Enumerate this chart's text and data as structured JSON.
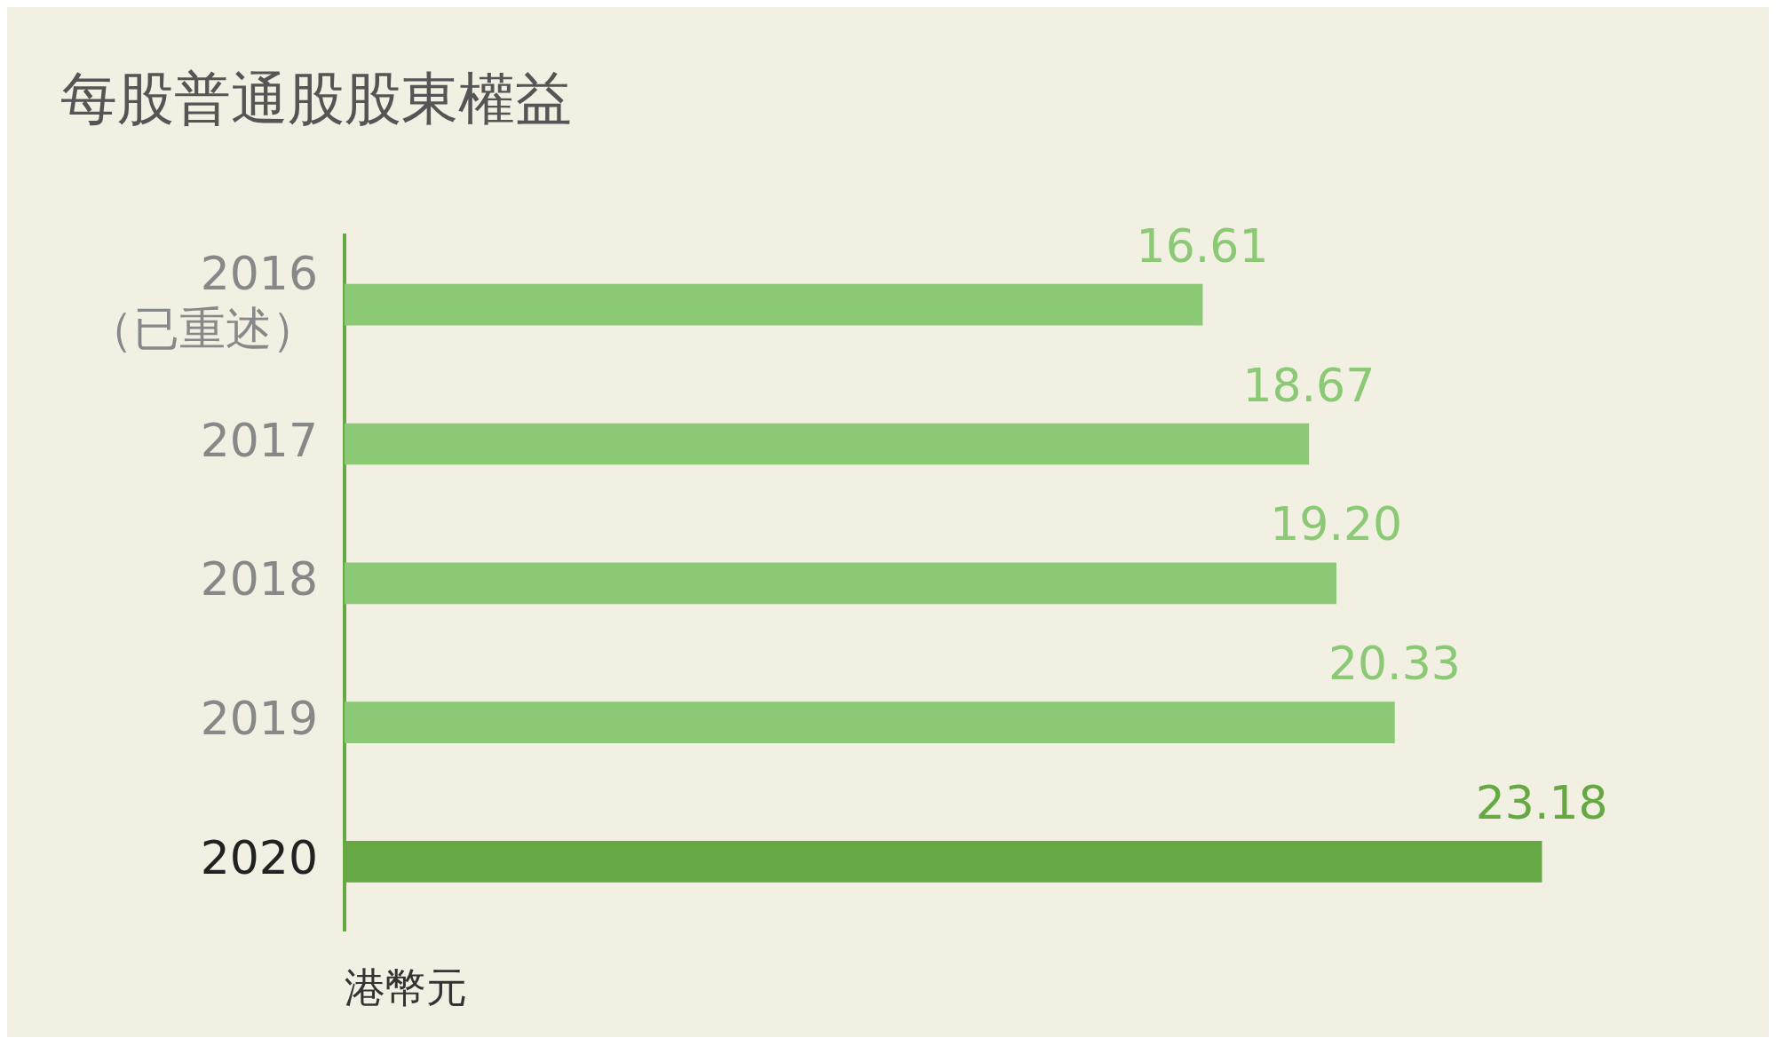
{
  "chart_data": {
    "type": "bar",
    "orientation": "horizontal",
    "title": "每股普通股股東權益",
    "xlabel": "港幣元",
    "categories": [
      "2016\n（已重述）",
      "2017",
      "2018",
      "2019",
      "2020"
    ],
    "values": [
      16.61,
      18.67,
      19.2,
      20.33,
      23.18
    ],
    "colors": [
      "#8bc975",
      "#8bc975",
      "#8bc975",
      "#8bc975",
      "#66a843"
    ],
    "value_labels": [
      "16.61",
      "18.67",
      "19.20",
      "20.33",
      "23.18"
    ],
    "tick_labels": "y",
    "grid": false,
    "legend": false
  }
}
